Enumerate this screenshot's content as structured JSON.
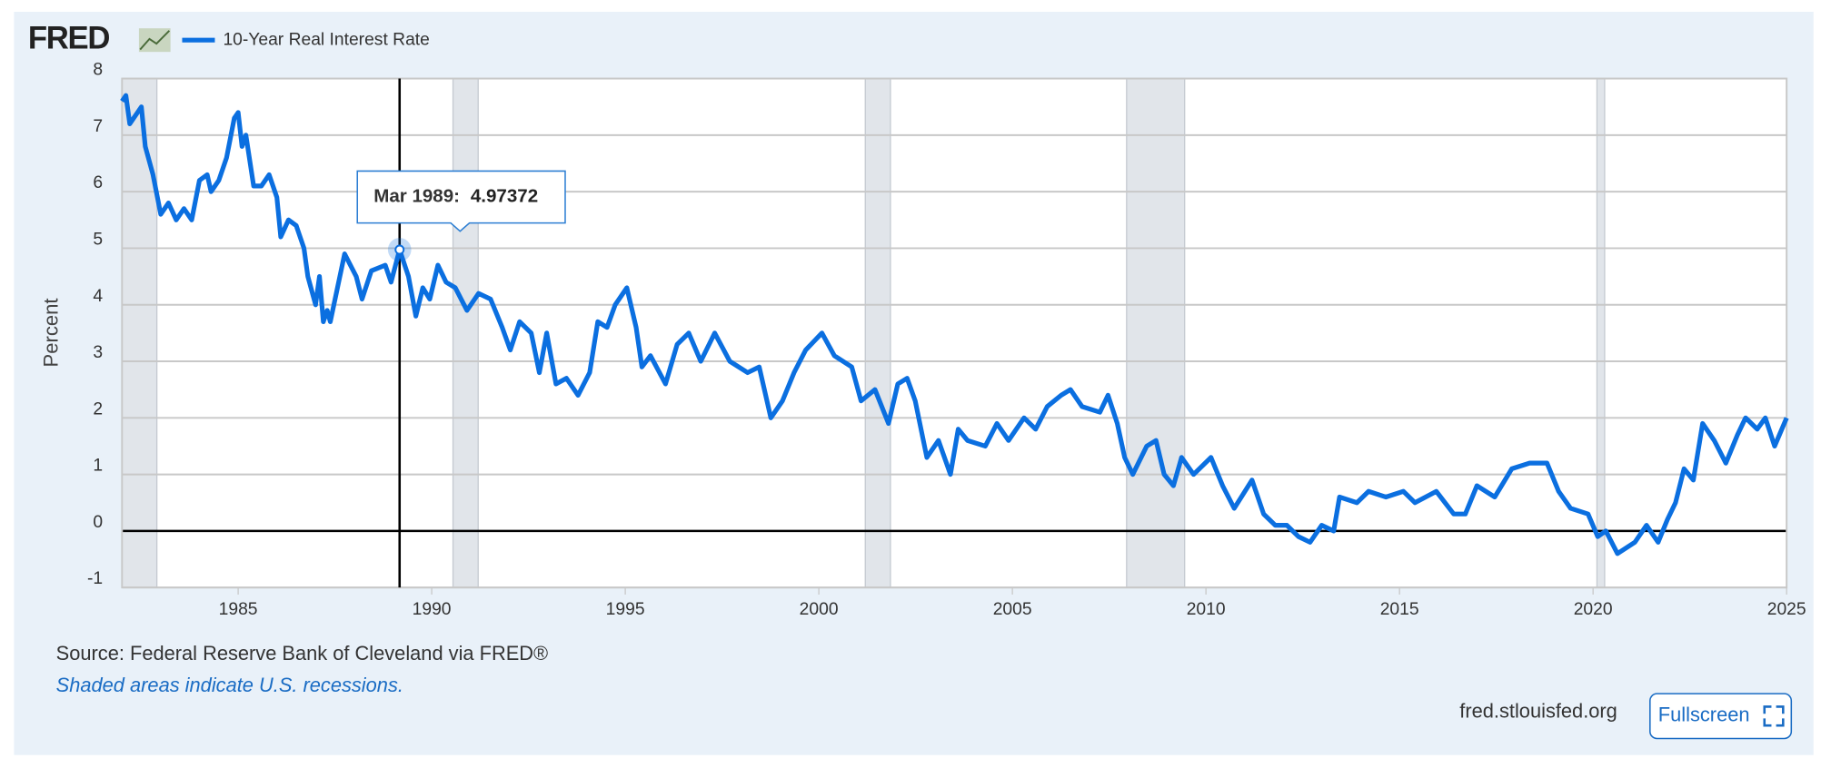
{
  "logo": "FRED",
  "chart_data": {
    "type": "line",
    "y_label": "Percent",
    "xlim": [
      1982,
      2025
    ],
    "xticks": [
      1985,
      1990,
      1995,
      2000,
      2005,
      2010,
      2015,
      2020,
      2025
    ],
    "ylim": [
      -1,
      8
    ],
    "yticks": [
      -1,
      0,
      1,
      2,
      3,
      4,
      5,
      6,
      7,
      8
    ],
    "grid": true,
    "recessions": [
      [
        1982.0,
        1982.9
      ],
      [
        1990.55,
        1991.2
      ],
      [
        2001.2,
        2001.85
      ],
      [
        2007.95,
        2009.45
      ],
      [
        2020.1,
        2020.3
      ]
    ],
    "series": [
      {
        "name": "10-Year Real Interest Rate",
        "color": "#0b6fe0",
        "x": [
          1982.0,
          1982.1,
          1982.2,
          1982.4,
          1982.5,
          1982.6,
          1982.8,
          1983.0,
          1983.2,
          1983.4,
          1983.6,
          1983.8,
          1984.0,
          1984.2,
          1984.3,
          1984.5,
          1984.7,
          1984.9,
          1985.0,
          1985.1,
          1985.2,
          1985.4,
          1985.6,
          1985.8,
          1986.0,
          1986.1,
          1986.3,
          1986.5,
          1986.7,
          1986.8,
          1987.0,
          1987.1,
          1987.2,
          1987.3,
          1987.38,
          1987.75,
          1988.05,
          1988.2,
          1988.44,
          1988.8,
          1988.95,
          1989.17,
          1989.4,
          1989.59,
          1989.77,
          1989.95,
          1990.16,
          1990.37,
          1990.61,
          1990.91,
          1991.21,
          1991.52,
          1991.82,
          1992.03,
          1992.27,
          1992.57,
          1992.78,
          1992.97,
          1993.21,
          1993.48,
          1993.78,
          1994.08,
          1994.29,
          1994.53,
          1994.74,
          1995.04,
          1995.28,
          1995.43,
          1995.65,
          1996.04,
          1996.34,
          1996.64,
          1996.95,
          1997.31,
          1997.7,
          1998.16,
          1998.46,
          1998.76,
          1999.06,
          1999.36,
          1999.66,
          2000.08,
          2000.4,
          2000.85,
          2001.09,
          2001.45,
          2001.8,
          2002.04,
          2002.28,
          2002.49,
          2002.79,
          2003.09,
          2003.4,
          2003.6,
          2003.84,
          2004.3,
          2004.6,
          2004.9,
          2005.3,
          2005.6,
          2005.9,
          2006.26,
          2006.5,
          2006.8,
          2007.26,
          2007.47,
          2007.71,
          2007.9,
          2008.11,
          2008.47,
          2008.71,
          2008.92,
          2009.16,
          2009.37,
          2009.68,
          2010.13,
          2010.43,
          2010.73,
          2011.19,
          2011.49,
          2011.79,
          2012.09,
          2012.39,
          2012.69,
          2012.99,
          2013.3,
          2013.45,
          2013.9,
          2014.2,
          2014.65,
          2015.1,
          2015.4,
          2015.95,
          2016.4,
          2016.7,
          2017.0,
          2017.46,
          2017.9,
          2018.36,
          2018.81,
          2019.11,
          2019.42,
          2019.87,
          2020.12,
          2020.33,
          2020.63,
          2021.08,
          2021.38,
          2021.68,
          2021.92,
          2022.13,
          2022.35,
          2022.59,
          2022.83,
          2023.13,
          2023.43,
          2023.73,
          2023.94,
          2024.24,
          2024.45,
          2024.69,
          2025.0
        ],
        "values": [
          7.6,
          7.7,
          7.2,
          7.4,
          7.5,
          6.8,
          6.3,
          5.6,
          5.8,
          5.5,
          5.7,
          5.5,
          6.2,
          6.3,
          6.0,
          6.2,
          6.6,
          7.3,
          7.4,
          6.8,
          7.0,
          6.1,
          6.1,
          6.3,
          5.9,
          5.2,
          5.5,
          5.4,
          5.0,
          4.5,
          4.0,
          4.5,
          3.7,
          3.9,
          3.7,
          4.9,
          4.5,
          4.1,
          4.6,
          4.7,
          4.4,
          4.97372,
          4.5,
          3.8,
          4.3,
          4.1,
          4.7,
          4.4,
          4.3,
          3.9,
          4.2,
          4.1,
          3.6,
          3.2,
          3.7,
          3.5,
          2.8,
          3.5,
          2.6,
          2.7,
          2.4,
          2.8,
          3.7,
          3.6,
          4.0,
          4.3,
          3.6,
          2.9,
          3.1,
          2.6,
          3.3,
          3.5,
          3.0,
          3.5,
          3.0,
          2.8,
          2.9,
          2.0,
          2.3,
          2.8,
          3.2,
          3.5,
          3.1,
          2.9,
          2.3,
          2.5,
          1.9,
          2.6,
          2.7,
          2.3,
          1.3,
          1.6,
          1.0,
          1.8,
          1.6,
          1.5,
          1.9,
          1.6,
          2.0,
          1.8,
          2.2,
          2.4,
          2.5,
          2.2,
          2.1,
          2.4,
          1.9,
          1.3,
          1.0,
          1.5,
          1.6,
          1.0,
          0.8,
          1.3,
          1.0,
          1.3,
          0.8,
          0.4,
          0.9,
          0.3,
          0.1,
          0.1,
          -0.1,
          -0.2,
          0.1,
          0.0,
          0.6,
          0.5,
          0.7,
          0.6,
          0.7,
          0.5,
          0.7,
          0.3,
          0.3,
          0.8,
          0.6,
          1.1,
          1.2,
          1.2,
          0.7,
          0.4,
          0.3,
          -0.1,
          0.0,
          -0.4,
          -0.2,
          0.1,
          -0.2,
          0.2,
          0.5,
          1.1,
          0.9,
          1.9,
          1.6,
          1.2,
          1.7,
          2.0,
          1.8,
          2.0,
          1.5,
          2.0
        ]
      }
    ],
    "tooltip": {
      "label": "Mar 1989:",
      "value": 4.97372
    },
    "source": "Source: Federal Reserve Bank of Cleveland via FRED®",
    "note": "Shaded areas indicate U.S. recessions."
  },
  "site": "fred.stlouisfed.org",
  "button": "Fullscreen"
}
